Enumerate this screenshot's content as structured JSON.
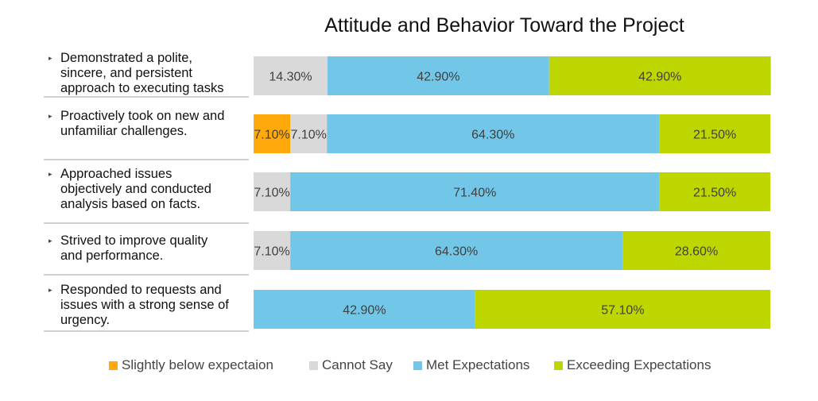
{
  "chart_data": {
    "type": "bar",
    "orientation": "horizontal",
    "stacked": true,
    "title": "Attitude and Behavior Toward the Project",
    "categories": [
      "Demonstrated a polite, sincere, and persistent approach to executing tasks",
      "Proactively took on new and unfamiliar challenges.",
      "Approached issues objectively and conducted analysis based on facts.",
      "Strived to improve quality and performance.",
      "Responded to requests and issues with a strong sense of urgency."
    ],
    "series": [
      {
        "name": "Slightly below expectaion",
        "color": "#ffa90a",
        "values": [
          0,
          7.1,
          0,
          0,
          0
        ]
      },
      {
        "name": "Cannot Say",
        "color": "#d9d9d9",
        "values": [
          14.3,
          7.1,
          7.1,
          7.1,
          0
        ]
      },
      {
        "name": "Met Expectations",
        "color": "#72c6e7",
        "values": [
          42.9,
          64.3,
          71.4,
          64.3,
          42.9
        ]
      },
      {
        "name": "Exceeding Expectations",
        "color": "#bed600",
        "values": [
          42.9,
          21.5,
          21.5,
          28.6,
          57.1
        ]
      }
    ],
    "data_labels": [
      [
        "",
        "14.30%",
        "42.90%",
        "42.90%"
      ],
      [
        "7.10%",
        "7.10%",
        "64.30%",
        "21.50%"
      ],
      [
        "",
        "7.10%",
        "71.40%",
        "21.50%"
      ],
      [
        "",
        "7.10%",
        "64.30%",
        "28.60%"
      ],
      [
        "",
        "",
        "42.90%",
        "57.10%"
      ]
    ],
    "xlim": [
      0,
      100
    ],
    "grid": false,
    "legend_position": "bottom"
  }
}
